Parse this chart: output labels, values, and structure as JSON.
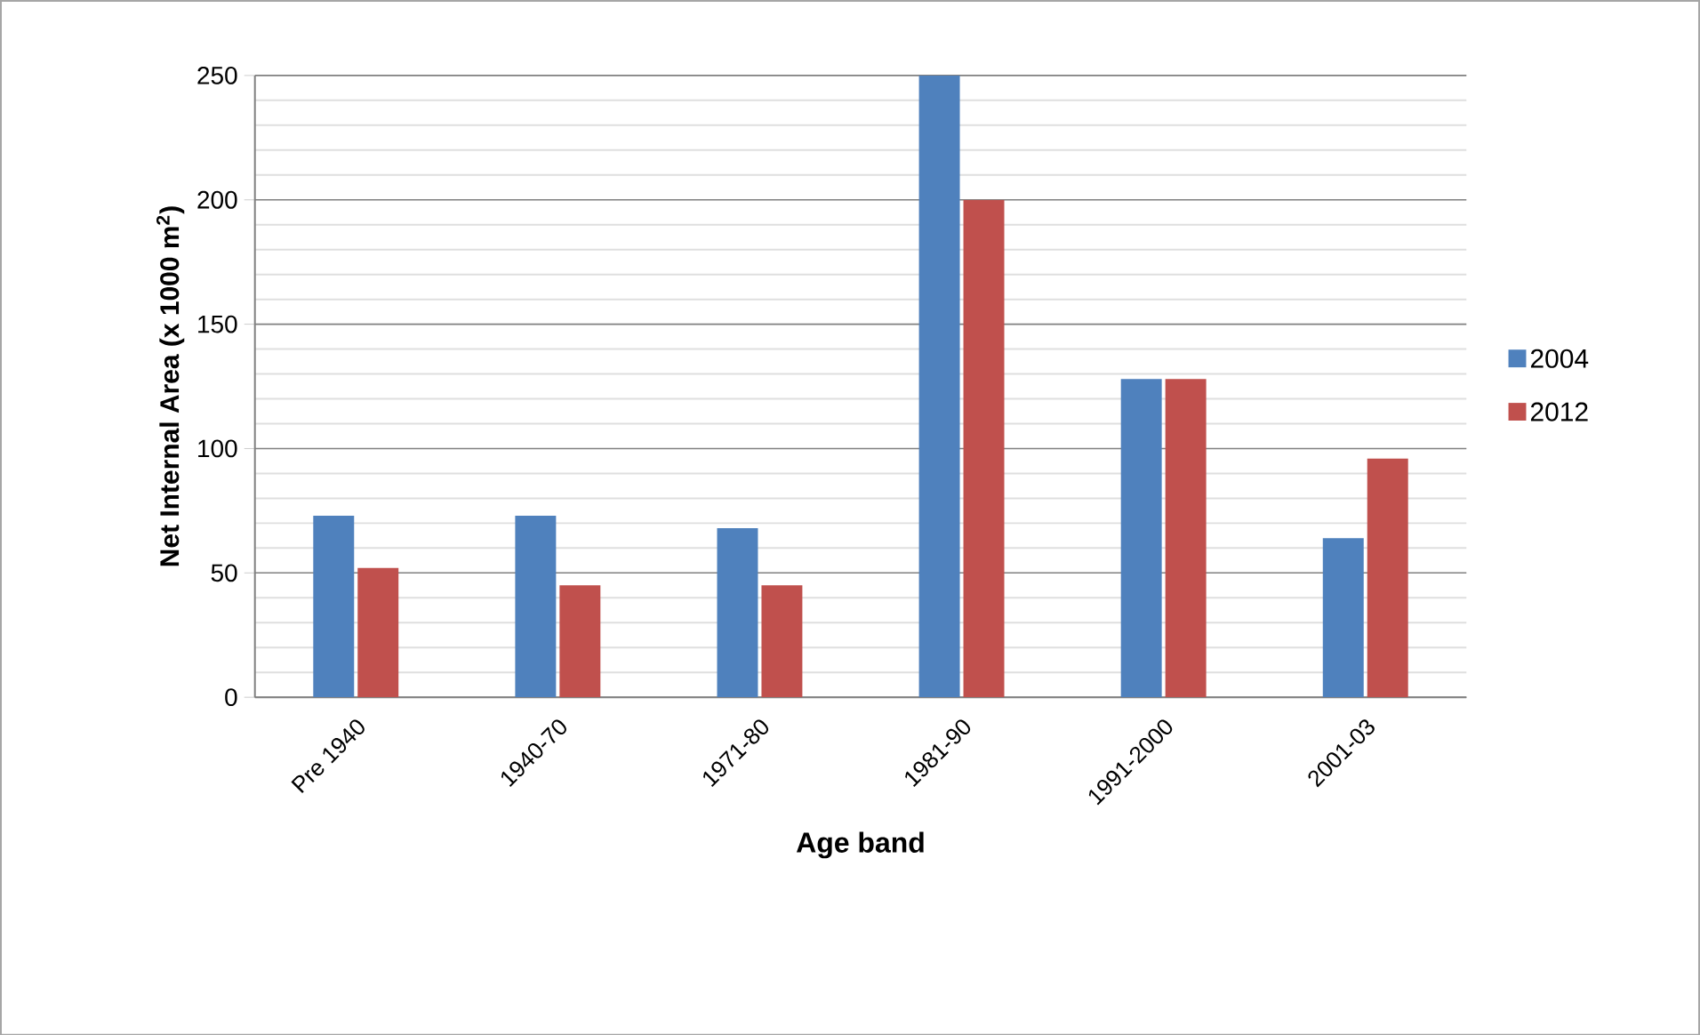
{
  "chart_data": {
    "type": "bar",
    "xlabel": "Age band",
    "ylabel": "Net Internal Area (x 1000 m$^{2}$)",
    "categories": [
      "Pre 1940",
      "1940-70",
      "1971-80",
      "1981-90",
      "1991-2000",
      "2001-03"
    ],
    "series": [
      {
        "name": "2004",
        "color": "#4f81bd",
        "values": [
          73,
          73,
          68,
          250,
          128,
          64
        ]
      },
      {
        "name": "2012",
        "color": "#c0504d",
        "values": [
          52,
          45,
          45,
          200,
          128,
          96
        ]
      }
    ],
    "ylim": [
      0,
      250
    ],
    "yticks": [
      0,
      50,
      100,
      150,
      200,
      250
    ],
    "grid": "y",
    "legend": "right"
  }
}
